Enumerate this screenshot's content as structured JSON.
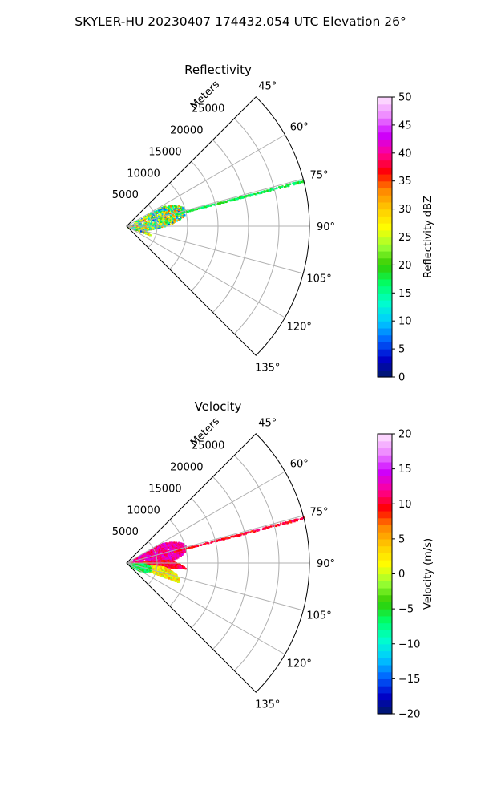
{
  "figure": {
    "suptitle": "SKYLER-HU  20230407  174432.054 UTC Elevation 26°"
  },
  "chart_data": [
    {
      "type": "heatmap",
      "title": "Reflectivity",
      "plot_kind": "polar-sector (PPI)",
      "range_axis_label": "Meters",
      "range_ticks": [
        "5000",
        "10000",
        "15000",
        "20000",
        "25000"
      ],
      "azimuth_ticks": [
        "45°",
        "60°",
        "75°",
        "90°",
        "105°",
        "120°",
        "135°"
      ],
      "azimuth_range_deg": [
        45,
        135
      ],
      "max_range_m": 30000,
      "grid": true,
      "colorbar": {
        "label": "Reflectivity dBZ",
        "min": 0,
        "max": 50,
        "ticks": [
          "0",
          "5",
          "10",
          "15",
          "20",
          "25",
          "30",
          "35",
          "40",
          "45",
          "50"
        ],
        "stops": [
          "#001a66",
          "#0000cc",
          "#0066ff",
          "#00ccff",
          "#00ffcc",
          "#00ff66",
          "#33cc00",
          "#99ff33",
          "#ffff00",
          "#ffcc00",
          "#ff8800",
          "#ff0000",
          "#ff0099",
          "#cc00ff",
          "#ee88ff",
          "#ffe6ff"
        ]
      },
      "observed_echoes": [
        {
          "desc": "main echo region",
          "azimuth_deg": [
            60,
            110
          ],
          "range_m": [
            0,
            10000
          ],
          "value_range": [
            5,
            35
          ]
        },
        {
          "desc": "narrow radial line",
          "azimuth_deg": 75.5,
          "range_m": [
            8000,
            30000
          ],
          "value_range": [
            15,
            20
          ]
        }
      ]
    },
    {
      "type": "heatmap",
      "title": "Velocity",
      "plot_kind": "polar-sector (PPI)",
      "range_axis_label": "Meters",
      "range_ticks": [
        "5000",
        "10000",
        "15000",
        "20000",
        "25000"
      ],
      "azimuth_ticks": [
        "45°",
        "60°",
        "75°",
        "90°",
        "105°",
        "120°",
        "135°"
      ],
      "azimuth_range_deg": [
        45,
        135
      ],
      "max_range_m": 30000,
      "grid": true,
      "colorbar": {
        "label": "Velocity (m/s)",
        "min": -20,
        "max": 20,
        "ticks": [
          "−20",
          "−15",
          "−10",
          "−5",
          "0",
          "5",
          "10",
          "15",
          "20"
        ],
        "stops": [
          "#001a66",
          "#0000cc",
          "#0066ff",
          "#00ccff",
          "#00ffcc",
          "#00ff66",
          "#33cc00",
          "#99ff33",
          "#ffff00",
          "#ffcc00",
          "#ff8800",
          "#ff0000",
          "#ff0099",
          "#cc00ff",
          "#ee88ff",
          "#ffe6ff"
        ]
      },
      "observed_echoes": [
        {
          "desc": "approaching (magenta) north part",
          "azimuth_deg": [
            60,
            85
          ],
          "range_m": [
            0,
            10000
          ],
          "value_range": [
            10,
            15
          ]
        },
        {
          "desc": "red core",
          "azimuth_deg": [
            85,
            95
          ],
          "range_m": [
            0,
            10000
          ],
          "value_range": [
            8,
            12
          ]
        },
        {
          "desc": "yellow/orange south part",
          "azimuth_deg": [
            95,
            110
          ],
          "range_m": [
            0,
            9000
          ],
          "value_range": [
            -2,
            6
          ]
        },
        {
          "desc": "green near radar",
          "azimuth_deg": [
            90,
            120
          ],
          "range_m": [
            0,
            4000
          ],
          "value_range": [
            -8,
            -4
          ]
        },
        {
          "desc": "narrow radial line",
          "azimuth_deg": 75.5,
          "range_m": [
            8000,
            30000
          ],
          "value_range": [
            8,
            12
          ]
        }
      ]
    }
  ]
}
